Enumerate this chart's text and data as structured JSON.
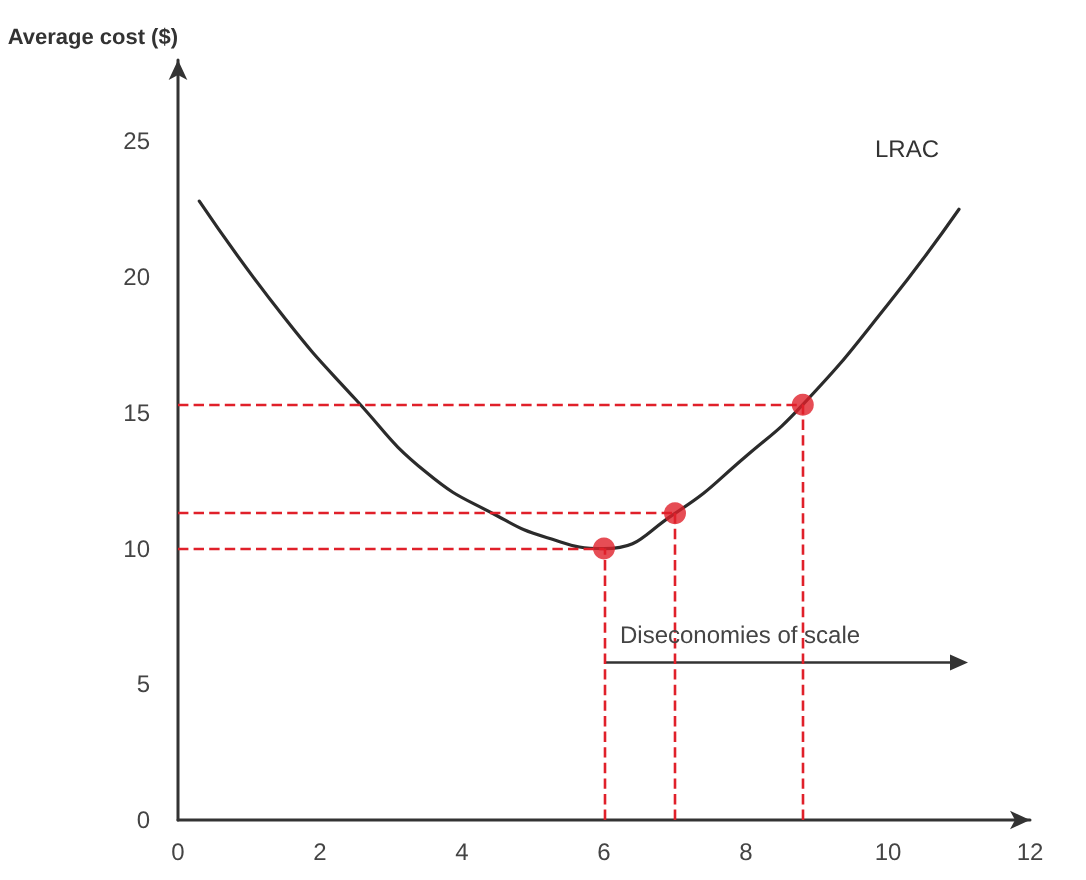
{
  "chart_data": {
    "type": "line",
    "ylabel": "Average cost ($)",
    "xlim": [
      0,
      12
    ],
    "xticks": [
      0,
      2,
      4,
      6,
      8,
      10,
      12
    ],
    "ylim": [
      0,
      28
    ],
    "yticks": [
      0,
      5,
      10,
      15,
      20,
      25
    ],
    "grid": false,
    "legend": false,
    "series": [
      {
        "name": "LRAC",
        "color": "#2b2b2b",
        "marker": "none",
        "x": [
          0.3,
          1.5,
          2.5,
          3.5,
          4.5,
          5.2,
          6,
          7,
          8,
          8.8,
          10,
          11
        ],
        "values": [
          22.8,
          18.5,
          15.5,
          12.8,
          11.2,
          10.4,
          10,
          11.3,
          13.4,
          15.3,
          19,
          22.5
        ]
      },
      {
        "type": "scatter",
        "color": "#e0202a",
        "marker": "circle",
        "x": [
          6,
          7,
          8.8
        ],
        "values": [
          10,
          11.3,
          15.3
        ]
      }
    ],
    "ref_lines": [
      {
        "axis": "y",
        "value": 10,
        "color": "#e0202a",
        "line_style": "dashed"
      },
      {
        "axis": "y",
        "value": 11.3,
        "color": "#e0202a",
        "line_style": "dashed"
      },
      {
        "axis": "y",
        "value": 15.3,
        "color": "#e0202a",
        "line_style": "dashed"
      },
      {
        "axis": "x",
        "value": 6,
        "color": "#e0202a",
        "line_style": "dashed"
      },
      {
        "axis": "x",
        "value": 7,
        "color": "#e0202a",
        "line_style": "dashed"
      },
      {
        "axis": "x",
        "value": 8.8,
        "color": "#e0202a",
        "line_style": "dashed"
      }
    ],
    "annotations": [
      {
        "text": "Diseconomies of scale",
        "x": 6,
        "y": 5.8
      }
    ]
  }
}
